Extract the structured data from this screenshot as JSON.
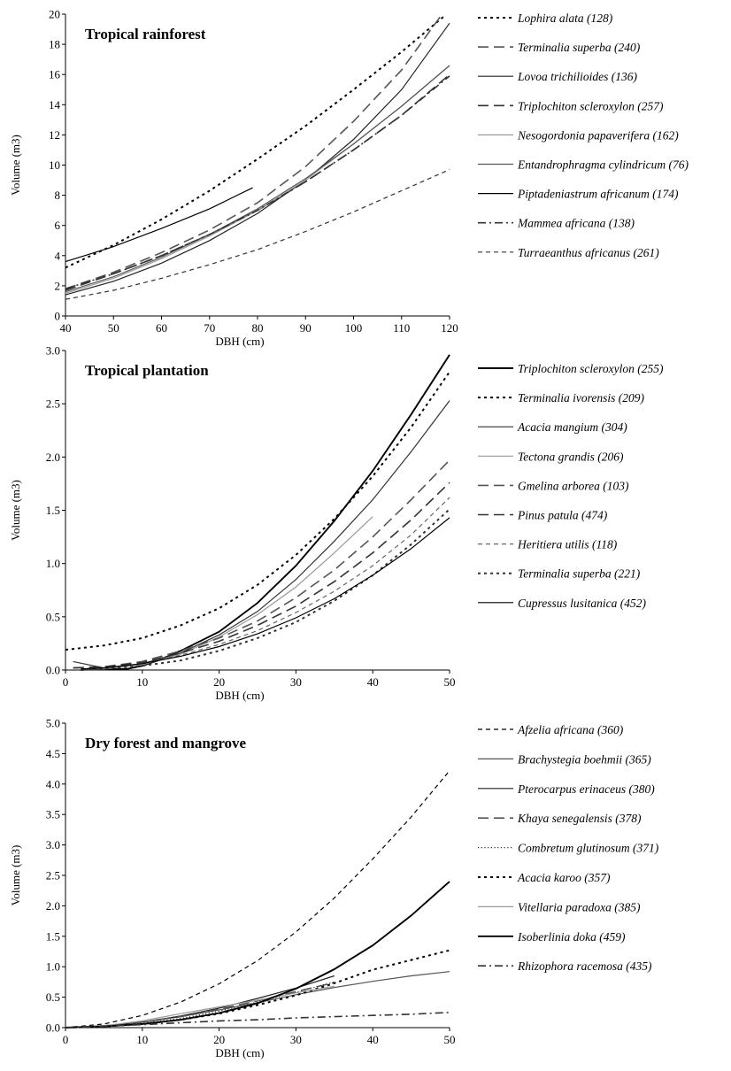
{
  "chart_data": [
    {
      "type": "line",
      "title": "Tropical rainforest",
      "xlabel": "DBH (cm)",
      "ylabel": "Volume (m3)",
      "xlim": [
        40,
        120
      ],
      "ylim": [
        0,
        20
      ],
      "xticks": [
        40,
        50,
        60,
        70,
        80,
        90,
        100,
        110,
        120
      ],
      "yticks": [
        0,
        2,
        4,
        6,
        8,
        10,
        12,
        14,
        16,
        18,
        20
      ],
      "legend": "right",
      "series": [
        {
          "name": "Lophira alata (128)",
          "style": "dot",
          "color": "#000000",
          "x": [
            40,
            50,
            60,
            70,
            80,
            90,
            100,
            110,
            119
          ],
          "y": [
            3.2,
            4.7,
            6.4,
            8.3,
            10.4,
            12.6,
            15.0,
            17.5,
            19.9
          ]
        },
        {
          "name": "Terminalia superba (240)",
          "style": "longdash",
          "color": "#555555",
          "x": [
            40,
            50,
            60,
            70,
            80,
            90,
            100,
            110,
            118
          ],
          "y": [
            1.8,
            2.9,
            4.2,
            5.7,
            7.5,
            9.9,
            12.9,
            16.3,
            19.8
          ]
        },
        {
          "name": "Lovoa trichilioides (136)",
          "style": "solid",
          "color": "#222222",
          "x": [
            40,
            50,
            60,
            70,
            80,
            90,
            100,
            110,
            120
          ],
          "y": [
            1.4,
            2.3,
            3.5,
            5.0,
            6.8,
            9.0,
            11.7,
            15.0,
            19.4
          ]
        },
        {
          "name": "Triplochiton scleroxylon (257)",
          "style": "longdash",
          "color": "#333333",
          "x": [
            40,
            50,
            60,
            70,
            80,
            90,
            100,
            110,
            120
          ],
          "y": [
            1.7,
            2.8,
            4.0,
            5.4,
            7.0,
            8.9,
            11.0,
            13.3,
            16.0
          ]
        },
        {
          "name": "Nesogordonia papaverifera (162)",
          "style": "solid",
          "color": "#999999",
          "x": [
            40,
            50,
            60,
            70,
            80,
            90,
            100,
            110,
            120
          ],
          "y": [
            1.5,
            2.5,
            3.8,
            5.3,
            7.0,
            9.0,
            11.4,
            13.9,
            16.6
          ]
        },
        {
          "name": "Entandrophragma cylindricum (76)",
          "style": "solid",
          "color": "#555555",
          "x": [
            40,
            50,
            60,
            70,
            80,
            90,
            100,
            110,
            120
          ],
          "y": [
            1.6,
            2.6,
            3.9,
            5.4,
            7.1,
            9.1,
            11.4,
            13.9,
            16.6
          ]
        },
        {
          "name": "Piptadeniastrum africanum (174)",
          "style": "solid",
          "color": "#000000",
          "x": [
            40,
            50,
            60,
            70,
            79
          ],
          "y": [
            3.6,
            4.6,
            5.8,
            7.1,
            8.5
          ]
        },
        {
          "name": "Mammea africana (138)",
          "style": "dashdot",
          "color": "#333333",
          "x": [
            40,
            50,
            60,
            70,
            80,
            90,
            100,
            110,
            120
          ],
          "y": [
            1.8,
            2.8,
            4.0,
            5.4,
            7.0,
            8.9,
            11.0,
            13.3,
            15.9
          ]
        },
        {
          "name": "Turraeanthus africanus (261)",
          "style": "smalldash",
          "color": "#333333",
          "x": [
            40,
            50,
            60,
            70,
            80,
            90,
            100,
            110,
            120
          ],
          "y": [
            1.1,
            1.7,
            2.5,
            3.4,
            4.4,
            5.6,
            6.9,
            8.3,
            9.7
          ]
        }
      ]
    },
    {
      "type": "line",
      "title": "Tropical plantation",
      "xlabel": "DBH (cm)",
      "ylabel": "Volume (m3)",
      "xlim": [
        0,
        50
      ],
      "ylim": [
        0,
        3.0
      ],
      "xticks": [
        0,
        10,
        20,
        30,
        40,
        50
      ],
      "yticks": [
        "0.0",
        "0.5",
        "1.0",
        "1.5",
        "2.0",
        "2.5",
        "3.0"
      ],
      "legend": "right",
      "series": [
        {
          "name": "Triplochiton scleroxylon (255)",
          "style": "solid-bold",
          "color": "#000000",
          "x": [
            2,
            5,
            8,
            10,
            12,
            15,
            20,
            25,
            30,
            35,
            40,
            45,
            50
          ],
          "y": [
            0.01,
            0.01,
            0.01,
            0.04,
            0.09,
            0.18,
            0.36,
            0.63,
            0.98,
            1.4,
            1.87,
            2.4,
            2.96
          ]
        },
        {
          "name": "Terminalia ivorensis  (209)",
          "style": "dot",
          "color": "#000000",
          "x": [
            0,
            5,
            10,
            15,
            20,
            25,
            30,
            35,
            40,
            45,
            50
          ],
          "y": [
            0.19,
            0.23,
            0.3,
            0.42,
            0.58,
            0.8,
            1.08,
            1.42,
            1.82,
            2.28,
            2.8
          ]
        },
        {
          "name": "Acacia mangium (304)",
          "style": "solid",
          "color": "#333333",
          "x": [
            1,
            5,
            10,
            15,
            20,
            25,
            30,
            35,
            40,
            45,
            50
          ],
          "y": [
            0.08,
            0.02,
            0.06,
            0.16,
            0.33,
            0.55,
            0.85,
            1.21,
            1.6,
            2.05,
            2.53
          ]
        },
        {
          "name": "Tectona grandis (206)",
          "style": "solid",
          "color": "#999999",
          "x": [
            2,
            5,
            10,
            15,
            20,
            25,
            30,
            35,
            40
          ],
          "y": [
            0.01,
            0.01,
            0.05,
            0.15,
            0.31,
            0.52,
            0.78,
            1.1,
            1.44
          ]
        },
        {
          "name": "Gmelina arborea (103)",
          "style": "longdash",
          "color": "#555555",
          "x": [
            1,
            5,
            10,
            15,
            20,
            25,
            30,
            35,
            40,
            45,
            50
          ],
          "y": [
            0.02,
            0.03,
            0.08,
            0.18,
            0.3,
            0.46,
            0.68,
            0.94,
            1.25,
            1.6,
            1.97
          ]
        },
        {
          "name": "Pinus patula (474)",
          "style": "longdash",
          "color": "#333333",
          "x": [
            1,
            5,
            10,
            15,
            20,
            25,
            30,
            35,
            40,
            45,
            50
          ],
          "y": [
            0.02,
            0.03,
            0.07,
            0.16,
            0.27,
            0.42,
            0.6,
            0.83,
            1.1,
            1.41,
            1.76
          ]
        },
        {
          "name": "Heritiera utilis (118)",
          "style": "smalldash",
          "color": "#666666",
          "x": [
            2,
            5,
            10,
            15,
            20,
            25,
            30,
            35,
            40,
            45,
            50
          ],
          "y": [
            0.01,
            0.02,
            0.06,
            0.14,
            0.24,
            0.37,
            0.54,
            0.74,
            0.98,
            1.27,
            1.62
          ]
        },
        {
          "name": "Terminalia superba (221)",
          "style": "dot",
          "color": "#333333",
          "x": [
            2,
            5,
            10,
            15,
            20,
            25,
            30,
            35,
            40,
            45,
            50
          ],
          "y": [
            0.0,
            0.01,
            0.04,
            0.09,
            0.18,
            0.3,
            0.45,
            0.65,
            0.89,
            1.18,
            1.51
          ]
        },
        {
          "name": "Cupressus lusitanica (452)",
          "style": "solid",
          "color": "#000000",
          "x": [
            2,
            5,
            10,
            15,
            20,
            25,
            30,
            35,
            40,
            45,
            50
          ],
          "y": [
            0.01,
            0.02,
            0.06,
            0.13,
            0.22,
            0.34,
            0.49,
            0.67,
            0.89,
            1.14,
            1.43
          ]
        }
      ]
    },
    {
      "type": "line",
      "title": "Dry forest and mangrove",
      "xlabel": "DBH (cm)",
      "ylabel": "Volume (m3)",
      "xlim": [
        0,
        50
      ],
      "ylim": [
        0,
        5.0
      ],
      "xticks": [
        0,
        10,
        20,
        30,
        40,
        50
      ],
      "yticks": [
        "0.0",
        "0.5",
        "1.0",
        "1.5",
        "2.0",
        "2.5",
        "3.0",
        "3.5",
        "4.0",
        "4.5",
        "5.0"
      ],
      "legend": "right",
      "series": [
        {
          "name": "Afzelia africana (360)",
          "style": "smalldash",
          "color": "#000000",
          "x": [
            0,
            5,
            10,
            15,
            20,
            25,
            30,
            35,
            40,
            45,
            50
          ],
          "y": [
            0.0,
            0.06,
            0.2,
            0.42,
            0.72,
            1.1,
            1.57,
            2.13,
            2.77,
            3.46,
            4.22
          ]
        },
        {
          "name": "Brachystegia boehmii (365)",
          "style": "solid",
          "color": "#555555",
          "x": [
            0,
            5,
            10,
            15,
            20,
            25,
            30,
            35,
            40,
            45,
            50
          ],
          "y": [
            0.0,
            0.03,
            0.09,
            0.18,
            0.29,
            0.41,
            0.54,
            0.66,
            0.76,
            0.85,
            0.92
          ]
        },
        {
          "name": "Pterocarpus erinaceus (380)",
          "style": "solid",
          "color": "#222222",
          "x": [
            0,
            5,
            10,
            15,
            20,
            25,
            30,
            35
          ],
          "y": [
            0.0,
            0.03,
            0.09,
            0.19,
            0.32,
            0.48,
            0.65,
            0.85
          ]
        },
        {
          "name": "Khaya senegalensis (378)",
          "style": "longdash",
          "color": "#555555",
          "x": [
            0,
            5,
            10,
            15,
            20,
            25,
            30,
            35
          ],
          "y": [
            0.0,
            0.03,
            0.09,
            0.18,
            0.3,
            0.44,
            0.59,
            0.74
          ]
        },
        {
          "name": "Combretum glutinosum (371)",
          "style": "dotfine",
          "color": "#333333",
          "x": [
            0,
            5,
            10,
            15,
            20,
            25,
            30,
            35
          ],
          "y": [
            0.0,
            0.02,
            0.07,
            0.15,
            0.27,
            0.42,
            0.58,
            0.75
          ]
        },
        {
          "name": "Acacia karoo (357)",
          "style": "dot",
          "color": "#000000",
          "x": [
            0,
            5,
            10,
            15,
            20,
            25,
            30,
            35,
            40,
            45,
            50
          ],
          "y": [
            0.0,
            0.02,
            0.06,
            0.13,
            0.23,
            0.37,
            0.53,
            0.73,
            0.95,
            1.11,
            1.27
          ]
        },
        {
          "name": "Vitellaria paradoxa (385)",
          "style": "solid",
          "color": "#999999",
          "x": [
            0,
            5,
            10,
            15,
            20,
            25,
            30,
            35
          ],
          "y": [
            0.0,
            0.03,
            0.11,
            0.23,
            0.34,
            0.45,
            0.57,
            0.68
          ]
        },
        {
          "name": "Isoberlinia doka (459)",
          "style": "solid-bold",
          "color": "#000000",
          "x": [
            0,
            5,
            10,
            15,
            20,
            25,
            30,
            35,
            40,
            45,
            50
          ],
          "y": [
            0.0,
            0.02,
            0.06,
            0.13,
            0.24,
            0.4,
            0.64,
            0.96,
            1.35,
            1.84,
            2.4
          ]
        },
        {
          "name": "Rhizophora racemosa (435)",
          "style": "dashdot",
          "color": "#333333",
          "x": [
            0,
            5,
            10,
            15,
            20,
            25,
            30,
            35,
            40,
            45,
            50
          ],
          "y": [
            0.0,
            0.02,
            0.05,
            0.08,
            0.11,
            0.13,
            0.16,
            0.18,
            0.2,
            0.22,
            0.25
          ]
        }
      ]
    }
  ]
}
